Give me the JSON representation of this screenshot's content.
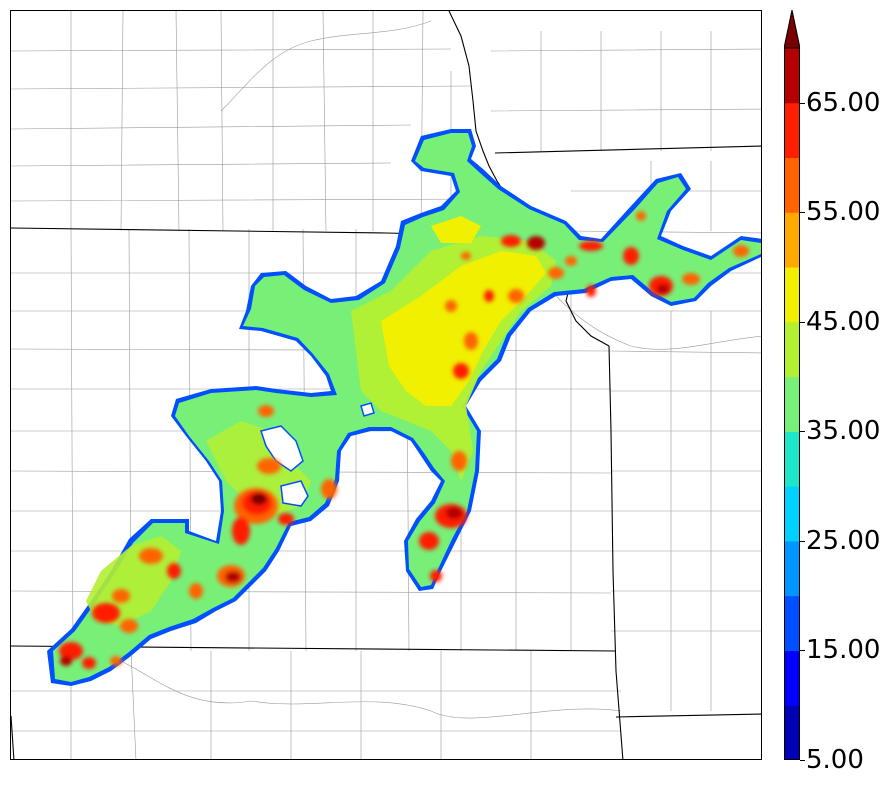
{
  "map": {
    "boundary_color": "#000000",
    "county_color": "#888888",
    "background": "#ffffff"
  },
  "colorbar": {
    "levels": [
      5,
      10,
      15,
      20,
      25,
      30,
      35,
      40,
      45,
      50,
      55,
      60,
      65,
      70
    ],
    "colors": [
      "#0000b4",
      "#0000ff",
      "#0050ff",
      "#0096ff",
      "#00d2ff",
      "#1ee6c8",
      "#78f078",
      "#b4f032",
      "#f0f000",
      "#ffaa00",
      "#ff6400",
      "#ff1e00",
      "#b40000",
      "#780000"
    ],
    "extend": "max",
    "tick_labels": [
      "5.00",
      "15.00",
      "25.00",
      "35.00",
      "45.00",
      "55.00",
      "65.00"
    ],
    "tick_values": [
      5,
      15,
      25,
      35,
      45,
      55,
      65
    ],
    "vmin": 5,
    "vmax": 70
  }
}
